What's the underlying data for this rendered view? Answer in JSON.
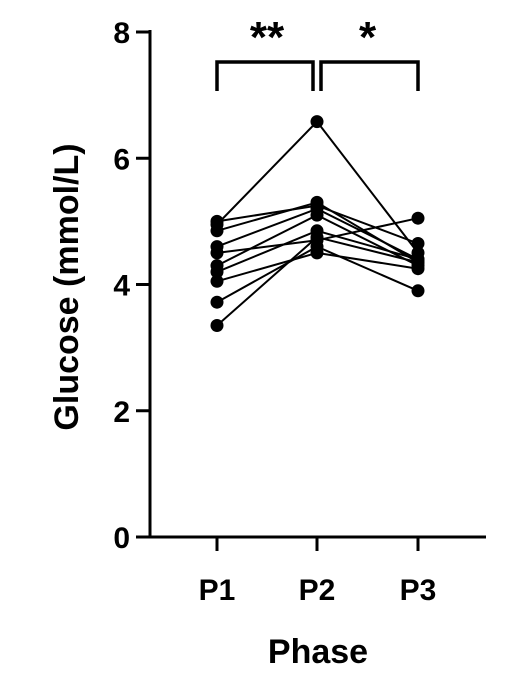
{
  "chart_data": {
    "type": "scatter",
    "subtype": "paired-line",
    "title": "",
    "xlabel": "Phase",
    "ylabel": "Glucose (mmol/L)",
    "categories": [
      "P1",
      "P2",
      "P3"
    ],
    "ylim": [
      0,
      8
    ],
    "yticks": [
      "0",
      "2",
      "4",
      "6",
      "8"
    ],
    "grid": false,
    "legend": "none",
    "marker_color": "#000000",
    "series": [
      {
        "values": [
          4.95,
          6.58,
          4.5
        ]
      },
      {
        "values": [
          5.0,
          5.25,
          4.65
        ]
      },
      {
        "values": [
          4.85,
          5.3,
          4.35
        ]
      },
      {
        "values": [
          4.6,
          5.2,
          4.4
        ]
      },
      {
        "values": [
          4.5,
          4.7,
          5.05
        ]
      },
      {
        "values": [
          4.3,
          5.1,
          4.3
        ]
      },
      {
        "values": [
          4.2,
          4.85,
          4.4
        ]
      },
      {
        "values": [
          4.05,
          4.5,
          4.25
        ]
      },
      {
        "values": [
          3.72,
          4.6,
          3.9
        ]
      },
      {
        "values": [
          3.35,
          4.75,
          4.35
        ]
      }
    ],
    "annotations": [
      {
        "from": "P1",
        "to": "P2",
        "label": "**"
      },
      {
        "from": "P2",
        "to": "P3",
        "label": "*"
      }
    ]
  }
}
